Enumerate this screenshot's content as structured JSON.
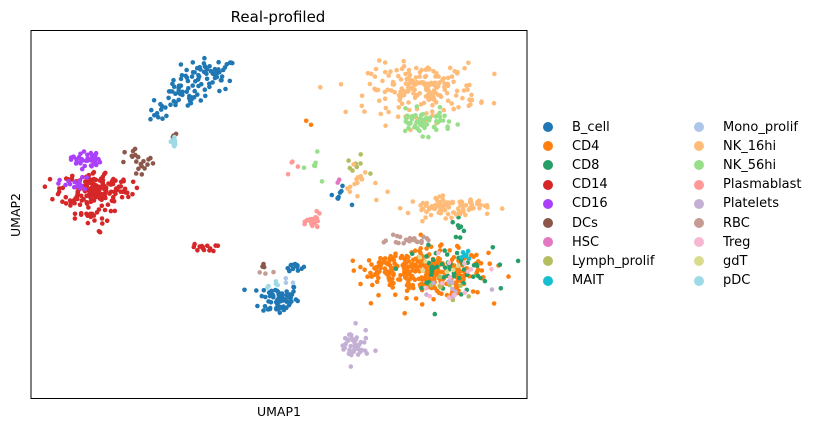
{
  "chart_data": {
    "type": "scatter",
    "title": "Real-profiled",
    "xlabel": "UMAP1",
    "ylabel": "UMAP2",
    "xlim": [
      0,
      100
    ],
    "ylim": [
      0,
      100
    ],
    "show_ticks": false,
    "grid": false,
    "legend_position": "right",
    "legend_columns": 2,
    "series": [
      {
        "name": "B_cell",
        "color": "#1f77b4",
        "clusters": [
          {
            "cx": 36,
            "cy": 88,
            "sx": 2.8,
            "sy": 2.2,
            "n": 60
          },
          {
            "cx": 30,
            "cy": 82,
            "sx": 2.0,
            "sy": 1.8,
            "n": 35
          },
          {
            "cx": 26,
            "cy": 78,
            "sx": 1.0,
            "sy": 1.4,
            "n": 12
          },
          {
            "cx": 50,
            "cy": 27,
            "sx": 2.0,
            "sy": 2.2,
            "n": 70
          },
          {
            "cx": 53,
            "cy": 36,
            "sx": 0.9,
            "sy": 0.6,
            "n": 14
          },
          {
            "cx": 62,
            "cy": 55,
            "sx": 1.0,
            "sy": 1.2,
            "n": 8
          }
        ]
      },
      {
        "name": "CD4",
        "color": "#ff7f0e",
        "clusters": [
          {
            "cx": 81,
            "cy": 34,
            "sx": 5.5,
            "sy": 3.2,
            "n": 260
          },
          {
            "cx": 72,
            "cy": 36,
            "sx": 2.5,
            "sy": 1.4,
            "n": 60
          },
          {
            "cx": 56,
            "cy": 75,
            "sx": 0.4,
            "sy": 0.4,
            "n": 2
          }
        ]
      },
      {
        "name": "CD8",
        "color": "#279e68",
        "clusters": [
          {
            "cx": 84,
            "cy": 35,
            "sx": 4.5,
            "sy": 3.0,
            "n": 55
          },
          {
            "cx": 86,
            "cy": 46,
            "sx": 1.0,
            "sy": 2.0,
            "n": 8
          }
        ]
      },
      {
        "name": "CD14",
        "color": "#d62728",
        "clusters": [
          {
            "cx": 13,
            "cy": 57,
            "sx": 3.5,
            "sy": 2.4,
            "n": 170
          },
          {
            "cx": 11,
            "cy": 50,
            "sx": 2.5,
            "sy": 2.5,
            "n": 30
          },
          {
            "cx": 35,
            "cy": 41,
            "sx": 1.2,
            "sy": 0.5,
            "n": 14
          }
        ]
      },
      {
        "name": "CD16",
        "color": "#aa40fc",
        "clusters": [
          {
            "cx": 11,
            "cy": 65,
            "sx": 1.5,
            "sy": 1.2,
            "n": 40
          },
          {
            "cx": 9,
            "cy": 58,
            "sx": 1.6,
            "sy": 1.0,
            "n": 18
          }
        ]
      },
      {
        "name": "DCs",
        "color": "#8c564b",
        "clusters": [
          {
            "cx": 22,
            "cy": 64,
            "sx": 1.5,
            "sy": 2.0,
            "n": 20
          },
          {
            "cx": 47,
            "cy": 36,
            "sx": 0.8,
            "sy": 0.5,
            "n": 4
          },
          {
            "cx": 29,
            "cy": 71,
            "sx": 0.3,
            "sy": 0.5,
            "n": 3
          }
        ]
      },
      {
        "name": "HSC",
        "color": "#e377c2",
        "clusters": [
          {
            "cx": 62,
            "cy": 59,
            "sx": 0.4,
            "sy": 0.4,
            "n": 2
          }
        ]
      },
      {
        "name": "Lymph_prolif",
        "color": "#b5bd61",
        "clusters": [
          {
            "cx": 65,
            "cy": 63,
            "sx": 1.5,
            "sy": 2.0,
            "n": 8
          },
          {
            "cx": 85,
            "cy": 30,
            "sx": 3.0,
            "sy": 2.0,
            "n": 8
          }
        ]
      },
      {
        "name": "MAIT",
        "color": "#17becf",
        "clusters": [
          {
            "cx": 88,
            "cy": 39,
            "sx": 1.5,
            "sy": 1.0,
            "n": 8
          }
        ]
      },
      {
        "name": "Mono_prolif",
        "color": "#aec7e8",
        "clusters": [
          {
            "cx": 52,
            "cy": 32,
            "sx": 0.6,
            "sy": 0.6,
            "n": 3
          }
        ]
      },
      {
        "name": "NK_16hi",
        "color": "#ffbb78",
        "clusters": [
          {
            "cx": 79,
            "cy": 84,
            "sx": 5.5,
            "sy": 3.5,
            "n": 190
          },
          {
            "cx": 84,
            "cy": 52,
            "sx": 4.0,
            "sy": 1.3,
            "n": 90
          },
          {
            "cx": 67,
            "cy": 58,
            "sx": 1.8,
            "sy": 2.5,
            "n": 16
          }
        ]
      },
      {
        "name": "NK_56hi",
        "color": "#98df8a",
        "clusters": [
          {
            "cx": 79,
            "cy": 75,
            "sx": 3.0,
            "sy": 1.6,
            "n": 55
          },
          {
            "cx": 57,
            "cy": 64,
            "sx": 1.5,
            "sy": 2.0,
            "n": 6
          }
        ]
      },
      {
        "name": "Plasmablast",
        "color": "#ff9896",
        "clusters": [
          {
            "cx": 57,
            "cy": 48,
            "sx": 0.7,
            "sy": 1.0,
            "n": 28
          },
          {
            "cx": 53,
            "cy": 63,
            "sx": 1.0,
            "sy": 1.5,
            "n": 4
          }
        ]
      },
      {
        "name": "Platelets",
        "color": "#c5b0d5",
        "clusters": [
          {
            "cx": 65,
            "cy": 14,
            "sx": 1.5,
            "sy": 2.5,
            "n": 45
          },
          {
            "cx": 85,
            "cy": 30,
            "sx": 3.5,
            "sy": 2.0,
            "n": 10
          }
        ]
      },
      {
        "name": "RBC",
        "color": "#c49c94",
        "clusters": [
          {
            "cx": 76,
            "cy": 43,
            "sx": 2.0,
            "sy": 0.6,
            "n": 22
          },
          {
            "cx": 47,
            "cy": 34,
            "sx": 1.0,
            "sy": 0.6,
            "n": 3
          }
        ]
      },
      {
        "name": "Treg",
        "color": "#f7b6d2",
        "clusters": [
          {
            "cx": 84,
            "cy": 33,
            "sx": 4.0,
            "sy": 2.5,
            "n": 14
          }
        ]
      },
      {
        "name": "gdT",
        "color": "#dbdb8d",
        "clusters": [
          {
            "cx": 82,
            "cy": 35,
            "sx": 3.0,
            "sy": 2.0,
            "n": 6
          }
        ]
      },
      {
        "name": "pDC",
        "color": "#9edae5",
        "clusters": [
          {
            "cx": 29,
            "cy": 70,
            "sx": 0.6,
            "sy": 1.0,
            "n": 10
          },
          {
            "cx": 49,
            "cy": 31,
            "sx": 1.0,
            "sy": 0.6,
            "n": 5
          }
        ]
      }
    ]
  },
  "legend": {
    "items": [
      {
        "label": "B_cell",
        "color": "#1f77b4"
      },
      {
        "label": "CD4",
        "color": "#ff7f0e"
      },
      {
        "label": "CD8",
        "color": "#279e68"
      },
      {
        "label": "CD14",
        "color": "#d62728"
      },
      {
        "label": "CD16",
        "color": "#aa40fc"
      },
      {
        "label": "DCs",
        "color": "#8c564b"
      },
      {
        "label": "HSC",
        "color": "#e377c2"
      },
      {
        "label": "Lymph_prolif",
        "color": "#b5bd61"
      },
      {
        "label": "MAIT",
        "color": "#17becf"
      },
      {
        "label": "Mono_prolif",
        "color": "#aec7e8"
      },
      {
        "label": "NK_16hi",
        "color": "#ffbb78"
      },
      {
        "label": "NK_56hi",
        "color": "#98df8a"
      },
      {
        "label": "Plasmablast",
        "color": "#ff9896"
      },
      {
        "label": "Platelets",
        "color": "#c5b0d5"
      },
      {
        "label": "RBC",
        "color": "#c49c94"
      },
      {
        "label": "Treg",
        "color": "#f7b6d2"
      },
      {
        "label": "gdT",
        "color": "#dbdb8d"
      },
      {
        "label": "pDC",
        "color": "#9edae5"
      }
    ]
  }
}
